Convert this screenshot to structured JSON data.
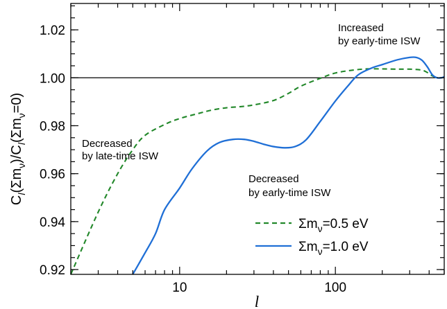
{
  "chart_data": {
    "type": "line",
    "xlabel": "l",
    "ylabel": "C_l(Σm_ν)/C_l(Σm_ν=0)",
    "xscale": "log",
    "xlim": [
      2,
      500
    ],
    "ylim": [
      0.918,
      1.031
    ],
    "x_ticks": [
      10,
      100
    ],
    "x_tick_labels": [
      "10",
      "100"
    ],
    "y_ticks": [
      0.92,
      0.94,
      0.96,
      0.98,
      1.0,
      1.02
    ],
    "y_tick_labels": [
      "0.92",
      "0.94",
      "0.96",
      "0.98",
      "1.00",
      "1.02"
    ],
    "reference_line": 1.0,
    "legend_position": "bottom-right",
    "series": [
      {
        "name": "Σm_ν=0.5 eV",
        "style": "dashed",
        "color": "#22882a",
        "points": [
          [
            2,
            0.918
          ],
          [
            3,
            0.944
          ],
          [
            4,
            0.96
          ],
          [
            5,
            0.97
          ],
          [
            6,
            0.976
          ],
          [
            8,
            0.9805
          ],
          [
            10,
            0.983
          ],
          [
            13,
            0.985
          ],
          [
            16,
            0.9865
          ],
          [
            20,
            0.9875
          ],
          [
            25,
            0.988
          ],
          [
            30,
            0.9887
          ],
          [
            40,
            0.9905
          ],
          [
            50,
            0.9935
          ],
          [
            60,
            0.9965
          ],
          [
            80,
            0.9998
          ],
          [
            100,
            1.002
          ],
          [
            130,
            1.0032
          ],
          [
            160,
            1.0037
          ],
          [
            200,
            1.0037
          ],
          [
            250,
            1.0036
          ],
          [
            300,
            1.0036
          ],
          [
            350,
            1.0033
          ],
          [
            380,
            1.0026
          ],
          [
            420,
            1.0008
          ],
          [
            450,
            1.0
          ],
          [
            480,
            1.0
          ],
          [
            500,
            1.0002
          ]
        ]
      },
      {
        "name": "Σm_ν=1.0 eV",
        "style": "solid",
        "color": "#1f6fd6",
        "points": [
          [
            5,
            0.918
          ],
          [
            6,
            0.927
          ],
          [
            7,
            0.935
          ],
          [
            8,
            0.945
          ],
          [
            10,
            0.954
          ],
          [
            12,
            0.962
          ],
          [
            15,
            0.9695
          ],
          [
            18,
            0.973
          ],
          [
            22,
            0.9743
          ],
          [
            26,
            0.9743
          ],
          [
            30,
            0.9735
          ],
          [
            35,
            0.9722
          ],
          [
            40,
            0.9713
          ],
          [
            47,
            0.9708
          ],
          [
            55,
            0.9713
          ],
          [
            65,
            0.9742
          ],
          [
            80,
            0.9818
          ],
          [
            100,
            0.9903
          ],
          [
            120,
            0.9965
          ],
          [
            140,
            1.0012
          ],
          [
            170,
            1.004
          ],
          [
            200,
            1.0055
          ],
          [
            250,
            1.0075
          ],
          [
            300,
            1.0085
          ],
          [
            330,
            1.0085
          ],
          [
            360,
            1.0073
          ],
          [
            390,
            1.0045
          ],
          [
            420,
            1.0012
          ],
          [
            450,
            1.0
          ],
          [
            480,
            1.0
          ],
          [
            500,
            1.0004
          ]
        ]
      }
    ],
    "annotations": [
      {
        "lines": [
          "Increased",
          "by early-time ISW"
        ]
      },
      {
        "lines": [
          "Decreased",
          "by late-time ISW"
        ]
      },
      {
        "lines": [
          "Decreased",
          "by early-time ISW"
        ]
      }
    ]
  }
}
